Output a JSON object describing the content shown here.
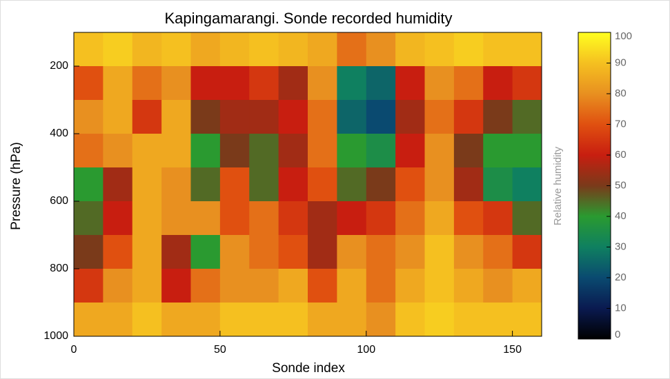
{
  "chart_data": {
    "type": "heatmap",
    "title": "Kapingamarangi. Sonde recorded humidity",
    "x_label": "Sonde index",
    "y_label": "Pressure (hPa)",
    "colorbar_label": "Relative humidity",
    "xbins": [
      0,
      10,
      20,
      30,
      40,
      50,
      60,
      70,
      80,
      90,
      100,
      110,
      120,
      130,
      140,
      150,
      160
    ],
    "ybins": [
      100,
      200,
      300,
      400,
      500,
      600,
      700,
      800,
      900,
      1000
    ],
    "z": [
      [
        90,
        92,
        88,
        90,
        85,
        88,
        90,
        88,
        85,
        75,
        80,
        88,
        90,
        92,
        90,
        90
      ],
      [
        70,
        85,
        75,
        80,
        60,
        60,
        65,
        55,
        80,
        30,
        25,
        60,
        80,
        75,
        60,
        65
      ],
      [
        80,
        85,
        65,
        85,
        50,
        55,
        55,
        60,
        75,
        25,
        20,
        55,
        75,
        65,
        50,
        45
      ],
      [
        75,
        80,
        85,
        85,
        40,
        50,
        45,
        55,
        75,
        40,
        35,
        60,
        80,
        50,
        40,
        40
      ],
      [
        40,
        55,
        85,
        80,
        45,
        70,
        45,
        60,
        70,
        45,
        50,
        70,
        80,
        55,
        35,
        30
      ],
      [
        45,
        60,
        85,
        80,
        80,
        70,
        75,
        65,
        55,
        60,
        65,
        75,
        85,
        70,
        65,
        45
      ],
      [
        50,
        70,
        85,
        55,
        40,
        80,
        75,
        70,
        55,
        80,
        75,
        80,
        90,
        80,
        75,
        65
      ],
      [
        65,
        80,
        85,
        60,
        75,
        80,
        80,
        85,
        70,
        85,
        75,
        85,
        90,
        85,
        80,
        85
      ],
      [
        85,
        85,
        90,
        85,
        85,
        90,
        90,
        90,
        85,
        85,
        80,
        90,
        92,
        90,
        90,
        90
      ]
    ],
    "xlim": [
      0,
      160
    ],
    "xticks": [
      0,
      50,
      100,
      150
    ],
    "ylim": [
      100,
      1000
    ],
    "yticks": [
      200,
      400,
      600,
      800,
      1000
    ],
    "clim": [
      0,
      100
    ],
    "cticks": [
      0,
      10,
      20,
      30,
      40,
      50,
      60,
      70,
      80,
      90,
      100
    ],
    "colormap": [
      "#000000",
      "#0a1a50",
      "#0a4a70",
      "#0f8060",
      "#2a9a30",
      "#7a3a1a",
      "#c81e10",
      "#e05010",
      "#e89020",
      "#f5c020",
      "#ffff20"
    ]
  }
}
